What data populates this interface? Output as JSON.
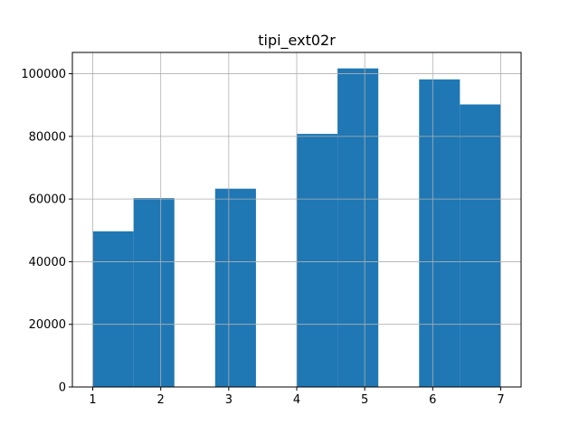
{
  "chart_data": {
    "type": "bar",
    "title": "tipi_ext02r",
    "xlabel": "",
    "ylabel": "",
    "bins": [
      {
        "x0": 1.0,
        "x1": 1.6,
        "value": 49700
      },
      {
        "x0": 1.6,
        "x1": 2.2,
        "value": 60300
      },
      {
        "x0": 2.2,
        "x1": 2.8,
        "value": 0
      },
      {
        "x0": 2.8,
        "x1": 3.4,
        "value": 63300
      },
      {
        "x0": 3.4,
        "x1": 4.0,
        "value": 0
      },
      {
        "x0": 4.0,
        "x1": 4.6,
        "value": 80800
      },
      {
        "x0": 4.6,
        "x1": 5.2,
        "value": 101700
      },
      {
        "x0": 5.2,
        "x1": 5.8,
        "value": 0
      },
      {
        "x0": 5.8,
        "x1": 6.4,
        "value": 98200
      },
      {
        "x0": 6.4,
        "x1": 7.0,
        "value": 90200
      }
    ],
    "xlim": [
      0.7,
      7.3
    ],
    "ylim": [
      0,
      106800
    ],
    "xticks": [
      1,
      2,
      3,
      4,
      5,
      6,
      7
    ],
    "yticks": [
      0,
      20000,
      40000,
      60000,
      80000,
      100000
    ],
    "grid": true,
    "bar_color": "#1f77b4",
    "grid_color": "#b0b0b0"
  }
}
